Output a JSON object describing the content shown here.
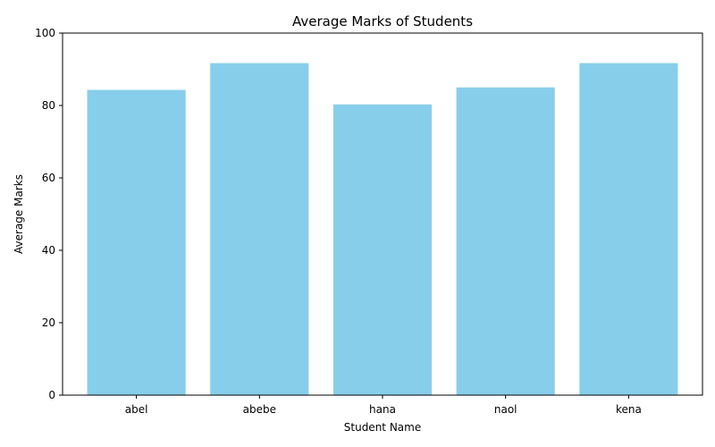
{
  "chart_data": {
    "type": "bar",
    "title": "Average Marks of Students",
    "xlabel": "Student Name",
    "ylabel": "Average Marks",
    "categories": [
      "abel",
      "abebe",
      "hana",
      "naol",
      "kena"
    ],
    "values": [
      84.3,
      91.7,
      80.3,
      85.0,
      91.7
    ],
    "ylim": [
      0,
      100
    ],
    "yticks": [
      "0",
      "20",
      "40",
      "60",
      "80",
      "100"
    ],
    "grid": false,
    "legend": false,
    "bar_color": "#87ceeb"
  }
}
